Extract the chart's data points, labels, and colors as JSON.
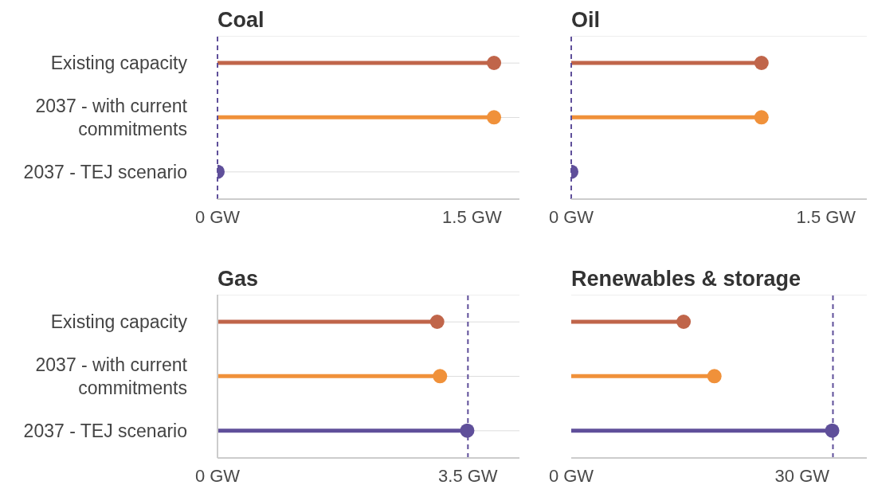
{
  "chart_data": [
    {
      "type": "lollipop",
      "title": "Coal",
      "orientation": "horizontal",
      "categories": [
        "Existing capacity",
        "2037 - with current commitments",
        "2037 - TEJ scenario"
      ],
      "values": [
        1.63,
        1.63,
        0
      ],
      "colors": [
        "#c0654a",
        "#f0913a",
        "#5f4f9a"
      ],
      "xlim": [
        0,
        1.78
      ],
      "xticks": [
        {
          "value": 0,
          "label": "0 GW"
        },
        {
          "value": 1.5,
          "label": "1.5 GW"
        }
      ],
      "grid": "y",
      "ref_lines": [
        {
          "axis": "x",
          "value": 0,
          "color": "#5f4f9a",
          "line_style": "dashed"
        }
      ]
    },
    {
      "type": "lollipop",
      "title": "Oil",
      "orientation": "horizontal",
      "categories": [
        null,
        null,
        null
      ],
      "values": [
        1.12,
        1.12,
        0
      ],
      "colors": [
        "#c0654a",
        "#f0913a",
        "#5f4f9a"
      ],
      "xlim": [
        0,
        1.74
      ],
      "xticks": [
        {
          "value": 0,
          "label": "0 GW"
        },
        {
          "value": 1.5,
          "label": "1.5 GW"
        }
      ],
      "grid": "y",
      "tick_labels": "x",
      "ref_lines": [
        {
          "axis": "x",
          "value": 0,
          "color": "#5f4f9a",
          "line_style": "dashed"
        }
      ]
    },
    {
      "type": "lollipop",
      "title": "Gas",
      "orientation": "horizontal",
      "categories": [
        "Existing capacity",
        "2037 - with current commitments",
        "2037 - TEJ scenario"
      ],
      "values": [
        3.07,
        3.11,
        3.49
      ],
      "colors": [
        "#c0654a",
        "#f0913a",
        "#5f4f9a"
      ],
      "xlim": [
        0,
        4.22
      ],
      "xticks": [
        {
          "value": 0,
          "label": "0 GW"
        },
        {
          "value": 3.5,
          "label": "3.5 GW"
        }
      ],
      "grid": "y",
      "ref_lines": [
        {
          "axis": "x",
          "value": 3.5,
          "color": "#5f4f9a",
          "line_style": "dashed"
        }
      ]
    },
    {
      "type": "lollipop",
      "title": "Renewables & storage",
      "orientation": "horizontal",
      "categories": [
        null,
        null,
        null
      ],
      "values": [
        14.6,
        18.6,
        33.9
      ],
      "colors": [
        "#c0654a",
        "#f0913a",
        "#5f4f9a"
      ],
      "xlim": [
        0,
        38.4
      ],
      "xticks": [
        {
          "value": 0,
          "label": "0 GW"
        },
        {
          "value": 30,
          "label": "30 GW"
        }
      ],
      "grid": "y",
      "tick_labels": "x",
      "ref_lines": [
        {
          "axis": "x",
          "value": 34,
          "color": "#5f4f9a",
          "line_style": "dashed"
        }
      ]
    }
  ]
}
